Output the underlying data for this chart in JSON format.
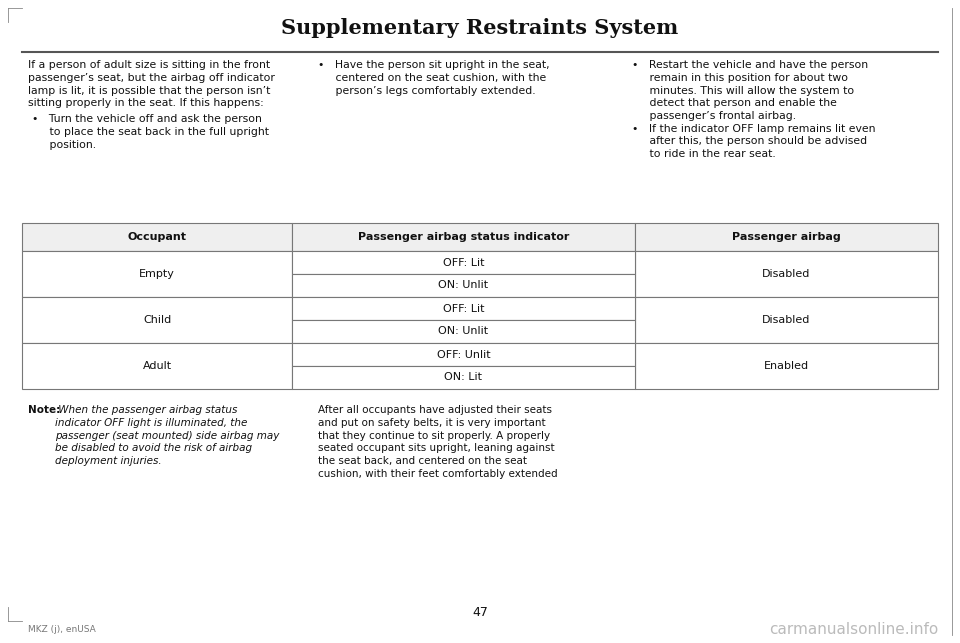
{
  "title": "Supplementary Restraints System",
  "bg_color": "#ffffff",
  "title_font_size": 15,
  "page_number": "47",
  "footer_left": "MKZ (j), enUSA",
  "footer_right": "carmanualsonline.info",
  "col1_header": "Occupant",
  "col2_header": "Passenger airbag status indicator",
  "col3_header": "Passenger airbag",
  "text_col1_intro": "If a person of adult size is sitting in the front\npassenger’s seat, but the airbag off indicator\nlamp is lit, it is possible that the person isn’t\nsitting properly in the seat. If this happens:",
  "text_col1_bullet1": "•   Turn the vehicle off and ask the person\n     to place the seat back in the full upright\n     position.",
  "text_col2_bullet": "•   Have the person sit upright in the seat,\n     centered on the seat cushion, with the\n     person’s legs comfortably extended.",
  "text_col3_bullet1": "•   Restart the vehicle and have the person\n     remain in this position for about two\n     minutes. This will allow the system to\n     detect that person and enable the\n     passenger’s frontal airbag.",
  "text_col3_bullet2": "•   If the indicator OFF lamp remains lit even\n     after this, the person should be advised\n     to ride in the rear seat.",
  "note_bold": "Note:",
  "note_italic": " When the passenger airbag status\nindicator OFF light is illuminated, the\npassenger (seat mounted) side airbag may\nbe disabled to avoid the risk of airbag\ndeployment injuries.",
  "bottom_col2_text": "After all occupants have adjusted their seats\nand put on safety belts, it is very important\nthat they continue to sit properly. A properly\nseated occupant sits upright, leaning against\nthe seat back, and centered on the seat\ncushion, with their feet comfortably extended",
  "occupant_groups": [
    {
      "occupant": "Empty",
      "sub_rows": [
        "OFF: Lit",
        "ON: Unlit"
      ],
      "airbag": "Disabled"
    },
    {
      "occupant": "Child",
      "sub_rows": [
        "OFF: Lit",
        "ON: Unlit"
      ],
      "airbag": "Disabled"
    },
    {
      "occupant": "Adult",
      "sub_rows": [
        "OFF: Unlit",
        "ON: Lit"
      ],
      "airbag": "Enabled"
    }
  ]
}
